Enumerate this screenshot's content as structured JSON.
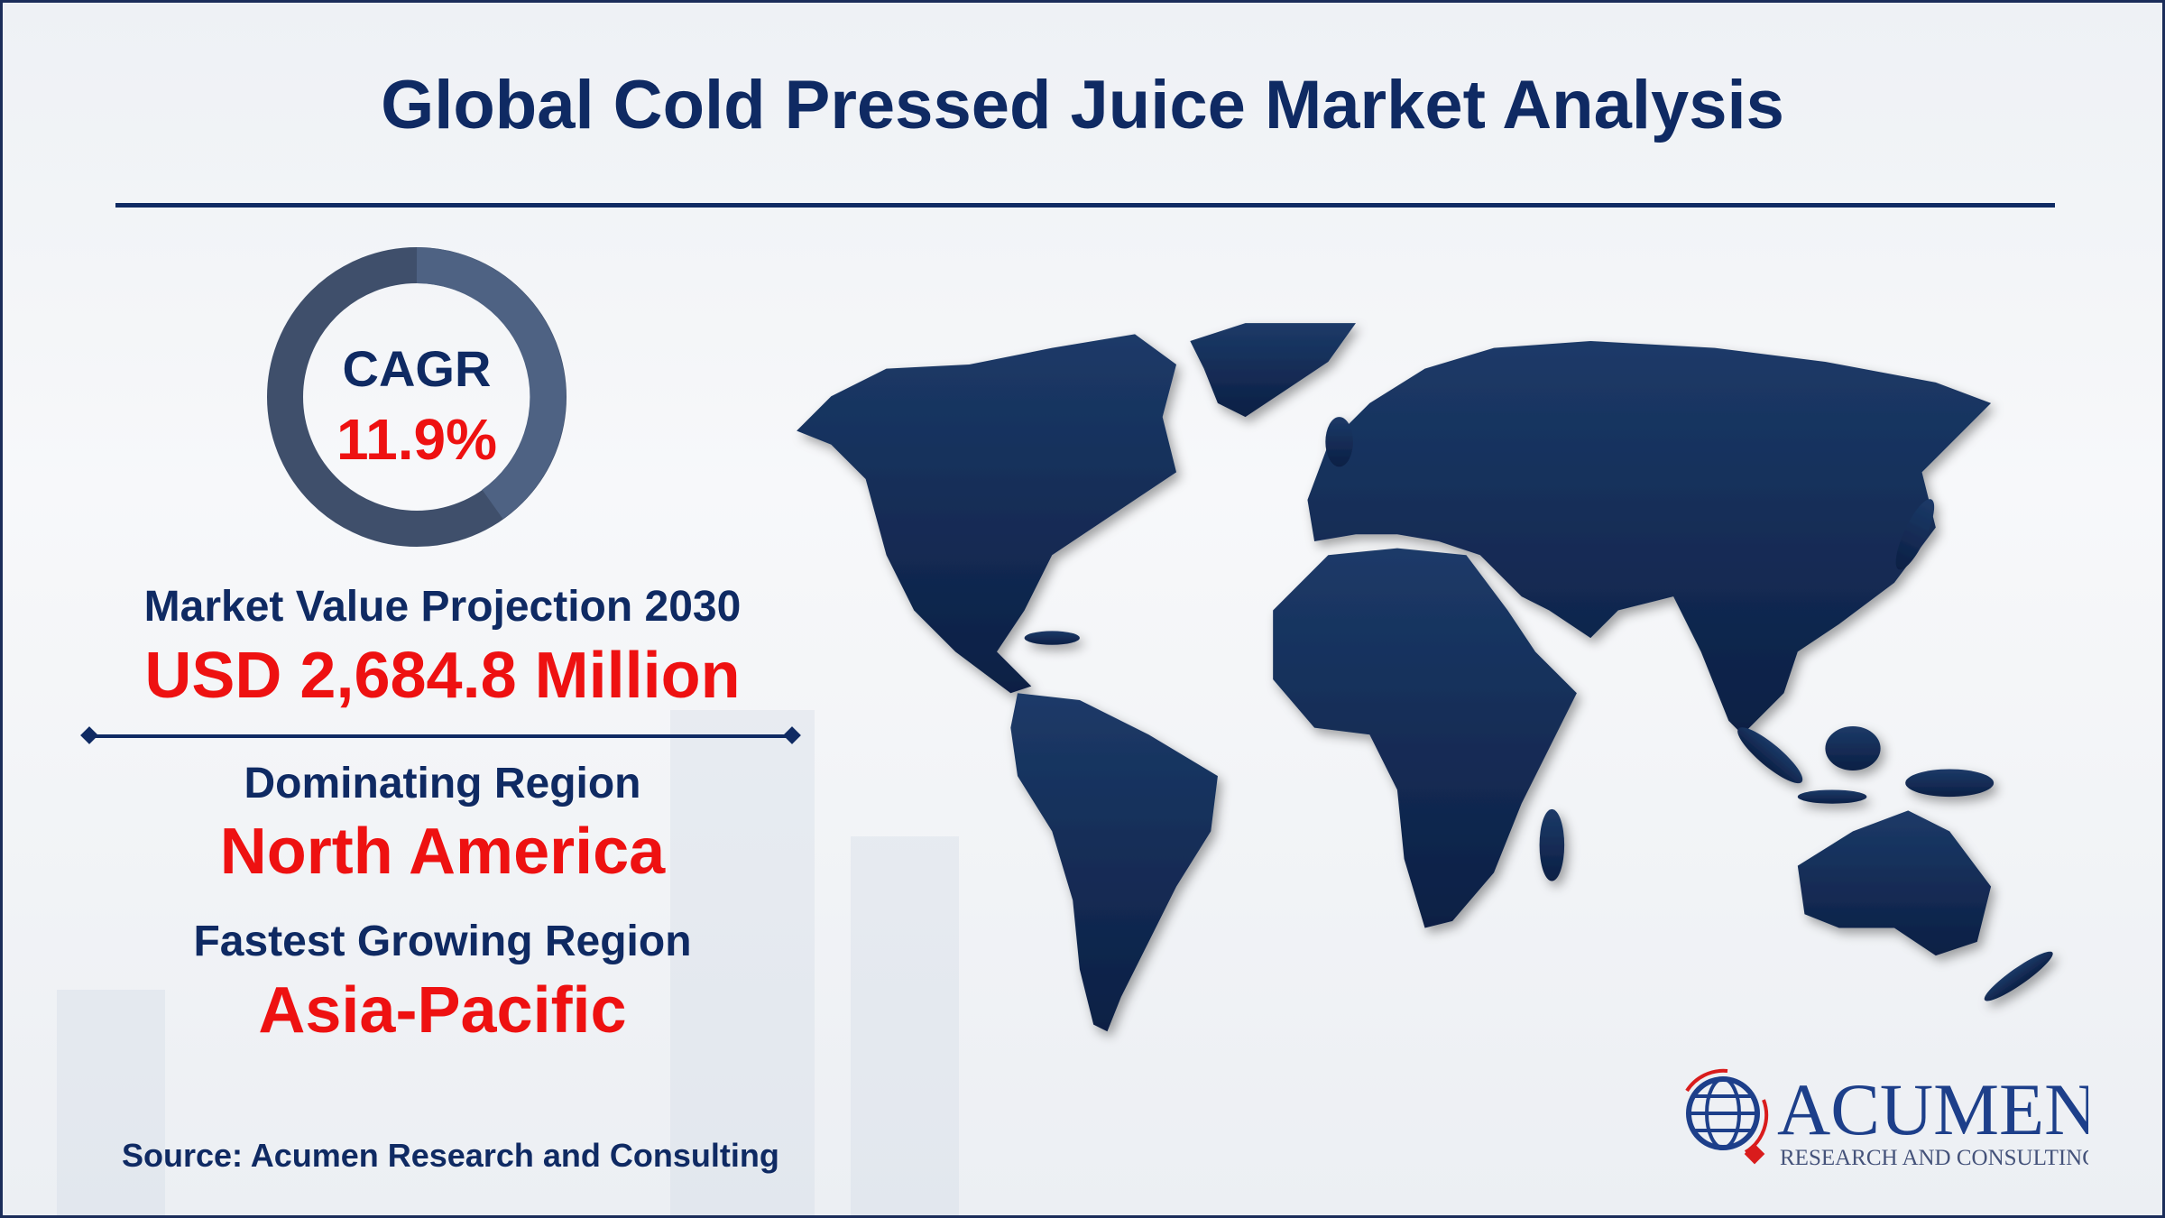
{
  "title": "Global Cold Pressed Juice Market Analysis",
  "cagr": {
    "label": "CAGR",
    "value": "11.9%"
  },
  "market_value": {
    "label": "Market Value Projection 2030",
    "value": "USD  2,684.8 Million"
  },
  "dominating_region": {
    "label": "Dominating Region",
    "value": "North America"
  },
  "fastest_region": {
    "label": "Fastest Growing Region",
    "value": "Asia-Pacific"
  },
  "source": "Source: Acumen Research and Consulting",
  "logo": {
    "name": "ACUMEN",
    "tagline": "RESEARCH AND CONSULTING"
  },
  "colors": {
    "navy": "#0f2a63",
    "red": "#ee1111",
    "map": "#14305c",
    "ring": "#4a5d7c"
  }
}
